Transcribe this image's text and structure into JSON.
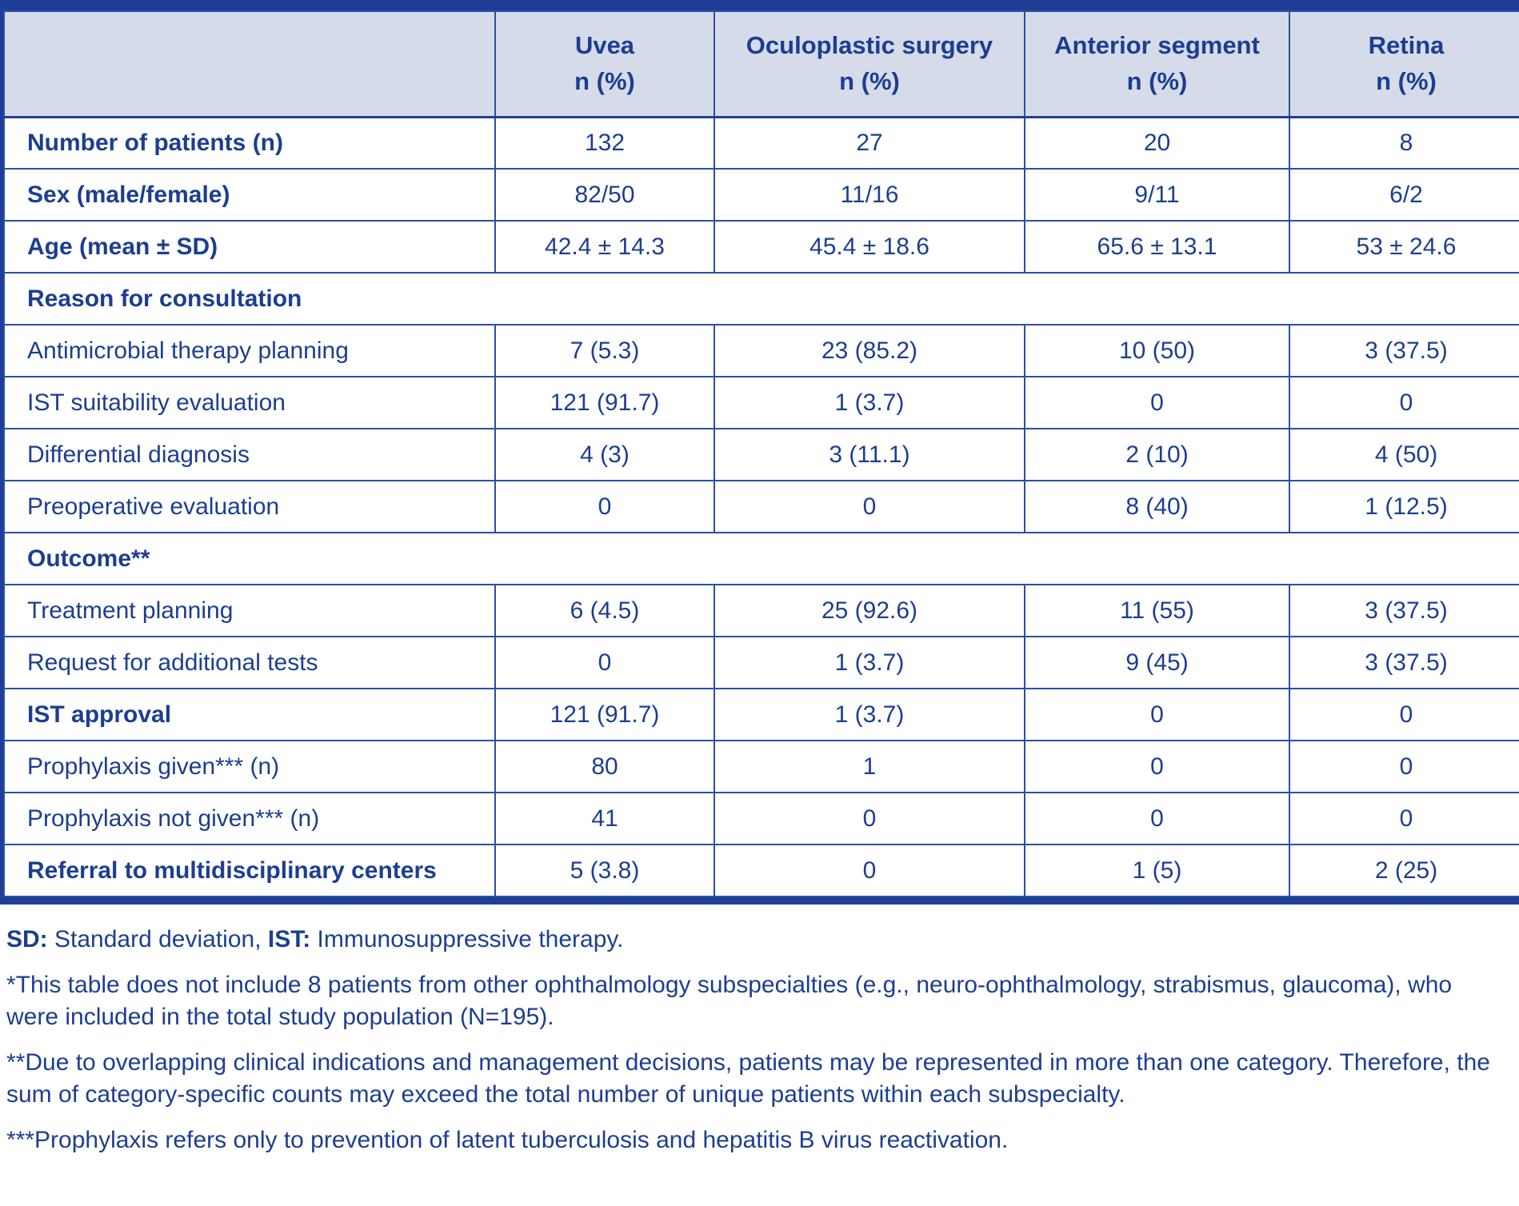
{
  "colors": {
    "frame_blue": "#1e3f95",
    "grid_blue": "#2b50a2",
    "header_background": "#d5dbe9",
    "text_blue": "#1c3e91",
    "body_background": "#ffffff"
  },
  "table": {
    "header": {
      "corner": "",
      "columns": [
        {
          "title": "Uvea",
          "sub": "n (%)"
        },
        {
          "title": "Oculoplastic surgery",
          "sub": "n (%)"
        },
        {
          "title": "Anterior segment",
          "sub": "n (%)"
        },
        {
          "title": "Retina",
          "sub": "n (%)"
        }
      ]
    },
    "rows": [
      {
        "type": "data",
        "bold": true,
        "label": "Number of patients (n)",
        "values": [
          "132",
          "27",
          "20",
          "8"
        ]
      },
      {
        "type": "data",
        "bold": true,
        "label": "Sex (male/female)",
        "values": [
          "82/50",
          "11/16",
          "9/11",
          "6/2"
        ]
      },
      {
        "type": "data",
        "bold": true,
        "label": "Age (mean ± SD)",
        "values": [
          "42.4 ± 14.3",
          "45.4 ± 18.6",
          "65.6 ± 13.1",
          "53 ± 24.6"
        ]
      },
      {
        "type": "section",
        "label": "Reason for consultation"
      },
      {
        "type": "data",
        "bold": false,
        "label": "Antimicrobial therapy planning",
        "values": [
          "7 (5.3)",
          "23 (85.2)",
          "10 (50)",
          "3 (37.5)"
        ]
      },
      {
        "type": "data",
        "bold": false,
        "label": "IST suitability evaluation",
        "values": [
          "121 (91.7)",
          "1 (3.7)",
          "0",
          "0"
        ]
      },
      {
        "type": "data",
        "bold": false,
        "label": "Differential diagnosis",
        "values": [
          "4 (3)",
          "3 (11.1)",
          "2 (10)",
          "4 (50)"
        ]
      },
      {
        "type": "data",
        "bold": false,
        "label": "Preoperative evaluation",
        "values": [
          "0",
          "0",
          "8 (40)",
          "1 (12.5)"
        ]
      },
      {
        "type": "section",
        "label": "Outcome**"
      },
      {
        "type": "data",
        "bold": false,
        "label": "Treatment planning",
        "values": [
          "6 (4.5)",
          "25 (92.6)",
          "11 (55)",
          "3 (37.5)"
        ]
      },
      {
        "type": "data",
        "bold": false,
        "label": "Request for additional tests",
        "values": [
          "0",
          "1 (3.7)",
          "9 (45)",
          "3 (37.5)"
        ]
      },
      {
        "type": "data",
        "bold": true,
        "label": "IST approval",
        "values": [
          "121 (91.7)",
          "1 (3.7)",
          "0",
          "0"
        ]
      },
      {
        "type": "data",
        "bold": false,
        "label": "Prophylaxis given*** (n)",
        "values": [
          "80",
          "1",
          "0",
          "0"
        ]
      },
      {
        "type": "data",
        "bold": false,
        "label": "Prophylaxis not given*** (n)",
        "values": [
          "41",
          "0",
          "0",
          "0"
        ]
      },
      {
        "type": "data",
        "bold": true,
        "label": "Referral to multidisciplinary centers",
        "values": [
          "5 (3.8)",
          "0",
          "1 (5)",
          "2 (25)"
        ]
      }
    ]
  },
  "footnotes": [
    {
      "segments": [
        {
          "text": "SD:",
          "bold": true
        },
        {
          "text": " Standard deviation, "
        },
        {
          "text": "IST:",
          "bold": true
        },
        {
          "text": " Immunosuppressive therapy."
        }
      ]
    },
    {
      "segments": [
        {
          "text": "*This table does not include 8 patients from other ophthalmology subspecialties (e.g., neuro-ophthalmology, strabismus, glaucoma), who were included in the total study population (N=195)."
        }
      ]
    },
    {
      "segments": [
        {
          "text": "**Due to overlapping clinical indications and management decisions, patients may be represented in more than one category. Therefore, the sum of category-specific counts may exceed the total number of unique patients within each subspecialty."
        }
      ]
    },
    {
      "segments": [
        {
          "text": "***Prophylaxis refers only to prevention of latent tuberculosis and hepatitis B virus reactivation."
        }
      ]
    }
  ]
}
